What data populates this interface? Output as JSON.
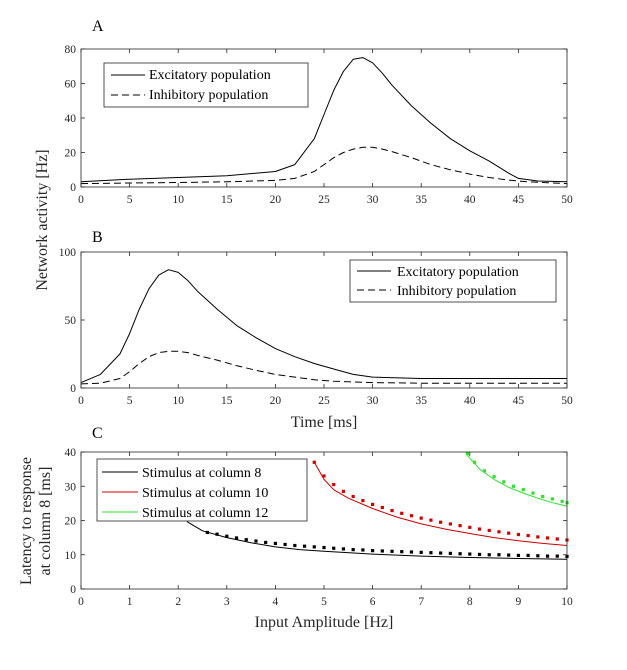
{
  "chart_data": [
    {
      "type": "line",
      "panel_label": "A",
      "xlabel": "",
      "ylabel": "",
      "xlim": [
        0,
        50
      ],
      "ylim": [
        0,
        80
      ],
      "xticks": [
        0,
        5,
        10,
        15,
        20,
        25,
        30,
        35,
        40,
        45,
        50
      ],
      "yticks": [
        0,
        20,
        40,
        60,
        80
      ],
      "grid": false,
      "legend_position": "top-left",
      "series": [
        {
          "name": "Excitatory population",
          "style": "solid",
          "x": [
            0,
            5,
            10,
            15,
            20,
            22,
            24,
            25,
            26,
            27,
            28,
            29,
            30,
            31,
            32,
            34,
            36,
            38,
            40,
            42,
            44,
            45,
            47,
            50
          ],
          "y": [
            3,
            4.5,
            5.5,
            6.5,
            9,
            13,
            28,
            42,
            56,
            67,
            74,
            75,
            72,
            66,
            59,
            47,
            37,
            28,
            21,
            15,
            8,
            5,
            3.5,
            3
          ]
        },
        {
          "name": "Inhibitory population",
          "style": "dashed",
          "x": [
            0,
            5,
            10,
            15,
            20,
            22,
            24,
            25,
            26,
            27,
            28,
            29,
            30,
            31,
            32,
            34,
            36,
            38,
            40,
            42,
            44,
            46,
            48,
            50
          ],
          "y": [
            2,
            2.3,
            2.6,
            3,
            3.8,
            5,
            9,
            13,
            17,
            20,
            22,
            23,
            23,
            22,
            20.5,
            17,
            13,
            10,
            7.5,
            5.5,
            4,
            3,
            2.5,
            2
          ]
        }
      ]
    },
    {
      "type": "line",
      "panel_label": "B",
      "xlabel": "Time [ms]",
      "ylabel": "",
      "xlim": [
        0,
        50
      ],
      "ylim": [
        0,
        100
      ],
      "xticks": [
        0,
        5,
        10,
        15,
        20,
        25,
        30,
        35,
        40,
        45,
        50
      ],
      "yticks": [
        0,
        50,
        100
      ],
      "grid": false,
      "legend_position": "top-right",
      "series": [
        {
          "name": "Excitatory population",
          "style": "solid",
          "x": [
            0,
            2,
            4,
            5,
            6,
            7,
            8,
            9,
            10,
            11,
            12,
            14,
            16,
            18,
            20,
            22,
            24,
            26,
            28,
            30,
            35,
            40,
            50
          ],
          "y": [
            4,
            10,
            25,
            40,
            58,
            73,
            83,
            87,
            85,
            79,
            71,
            58,
            46,
            37,
            29,
            23,
            18,
            14,
            10,
            8,
            7,
            7,
            7
          ]
        },
        {
          "name": "Inhibitory population",
          "style": "dashed",
          "x": [
            0,
            2,
            4,
            5,
            6,
            7,
            8,
            9,
            10,
            11,
            12,
            14,
            16,
            18,
            20,
            22,
            24,
            26,
            28,
            30,
            35,
            40,
            50
          ],
          "y": [
            3,
            3.5,
            7,
            12,
            18,
            23,
            26,
            27,
            27,
            26,
            24,
            20.5,
            16.5,
            13,
            10,
            8,
            6,
            5,
            4.5,
            4,
            3.5,
            3.5,
            3.5
          ]
        }
      ]
    },
    {
      "type": "line",
      "panel_label": "C",
      "xlabel": "Input Amplitude [Hz]",
      "ylabel": "Latency to response at column 8 [ms]",
      "ylabel_lines": [
        "Latency to response",
        "at column 8 [ms]"
      ],
      "xlim": [
        0,
        10
      ],
      "ylim": [
        0,
        40
      ],
      "xticks": [
        0,
        1,
        2,
        3,
        4,
        5,
        6,
        7,
        8,
        9,
        10
      ],
      "yticks": [
        0,
        10,
        20,
        30,
        40
      ],
      "grid": false,
      "legend_position": "top-left",
      "series": [
        {
          "name": "Stimulus at column 8",
          "color": "#000000",
          "x": [
            1.9,
            2.2,
            2.5,
            3,
            3.5,
            4,
            4.5,
            5,
            6,
            7,
            8,
            9,
            10
          ],
          "y": [
            25,
            19.5,
            17,
            15,
            13.5,
            12.3,
            11.5,
            11,
            10.2,
            9.6,
            9.2,
            8.9,
            8.7
          ],
          "markers_x": [
            2.6,
            2.8,
            3.0,
            3.2,
            3.4,
            3.6,
            3.8,
            4.0,
            4.2,
            4.4,
            4.6,
            4.8,
            5.0,
            5.2,
            5.4,
            5.6,
            5.8,
            6.0,
            6.2,
            6.4,
            6.6,
            6.8,
            7.0,
            7.2,
            7.4,
            7.6,
            7.8,
            8.0,
            8.2,
            8.4,
            8.6,
            8.8,
            9.0,
            9.2,
            9.4,
            9.6,
            9.8,
            10.0
          ],
          "markers_y": [
            16.5,
            16,
            15.4,
            14.9,
            14.4,
            14,
            13.6,
            13.3,
            13,
            12.7,
            12.5,
            12.3,
            12.1,
            11.9,
            11.7,
            11.5,
            11.4,
            11.2,
            11.1,
            11,
            10.9,
            10.8,
            10.7,
            10.6,
            10.5,
            10.4,
            10.3,
            10.2,
            10.1,
            10,
            10,
            9.9,
            9.8,
            9.8,
            9.7,
            9.6,
            9.6,
            9.5
          ]
        },
        {
          "name": "Stimulus at column 10",
          "color": "#cc0000",
          "x": [
            4.8,
            5,
            5.2,
            5.5,
            6,
            6.5,
            7,
            7.5,
            8,
            8.5,
            9,
            9.5,
            10
          ],
          "y": [
            37,
            32,
            29,
            26.5,
            23.5,
            21,
            19,
            17.5,
            16.2,
            15,
            14.1,
            13.3,
            12.7
          ],
          "markers_x": [
            4.8,
            5.0,
            5.2,
            5.4,
            5.6,
            5.8,
            6.0,
            6.2,
            6.4,
            6.6,
            6.8,
            7.0,
            7.2,
            7.4,
            7.6,
            7.8,
            8.0,
            8.2,
            8.4,
            8.6,
            8.8,
            9.0,
            9.2,
            9.4,
            9.6,
            9.8,
            10.0
          ],
          "markers_y": [
            37,
            33,
            30.5,
            28.5,
            27,
            25.8,
            24.7,
            23.8,
            22.9,
            22.1,
            21.4,
            20.7,
            20.1,
            19.5,
            19,
            18.5,
            18,
            17.5,
            17.1,
            16.7,
            16.3,
            15.9,
            15.6,
            15.2,
            14.9,
            14.6,
            14.3
          ]
        },
        {
          "name": "Stimulus at column 12",
          "color": "#33dd33",
          "x": [
            7.95,
            8.2,
            8.5,
            8.8,
            9.1,
            9.4,
            9.7,
            10
          ],
          "y": [
            39,
            35,
            32,
            29.7,
            28,
            26.5,
            25.2,
            24.2
          ],
          "markers_x": [
            7.95,
            8.1,
            8.3,
            8.5,
            8.7,
            8.9,
            9.1,
            9.3,
            9.5,
            9.7,
            9.9,
            10.0
          ],
          "markers_y": [
            39.5,
            37,
            34.5,
            32.8,
            31.3,
            30,
            29,
            28,
            27,
            26.3,
            25.6,
            25.2
          ]
        }
      ]
    }
  ],
  "shared_ylabel": "Network activity [Hz]"
}
